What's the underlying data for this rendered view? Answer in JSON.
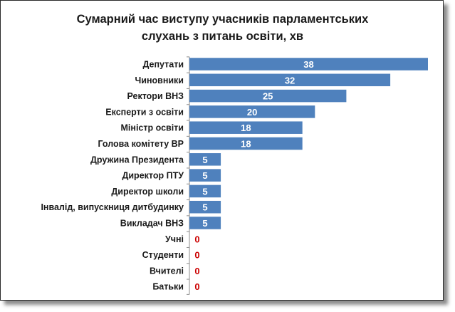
{
  "chart_data": {
    "type": "bar",
    "orientation": "horizontal",
    "title_lines": [
      "Сумарний час виступу учасників парламентських",
      "слухань з питань освіти, хв"
    ],
    "categories": [
      "Депутати",
      "Чиновники",
      "Ректори ВНЗ",
      "Експерти з освіти",
      "Міністр освіти",
      "Голова комітету ВР",
      "Дружина Президента",
      "Директор ПТУ",
      "Директор школи",
      "Інвалід, випускниця дитбудинку",
      "Викладач ВНЗ",
      "Учні",
      "Студенти",
      "Вчителі",
      "Батьки"
    ],
    "values": [
      38,
      32,
      25,
      20,
      18,
      18,
      5,
      5,
      5,
      5,
      5,
      0,
      0,
      0,
      0
    ],
    "bar_color": "#4f81bd",
    "label_color_on_bar": "#ffffff",
    "zero_label_color": "#cc0000",
    "grid": false,
    "legend": "none"
  }
}
